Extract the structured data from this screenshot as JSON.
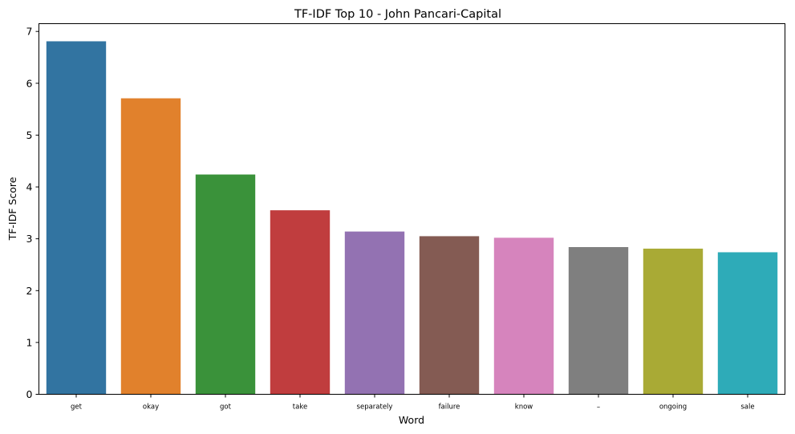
{
  "chart_data": {
    "type": "bar",
    "title": "TF-IDF Top 10 - John Pancari-Capital",
    "xlabel": "Word",
    "ylabel": "TF-IDF Score",
    "categories": [
      "get",
      "okay",
      "got",
      "take",
      "separately",
      "failure",
      "know",
      "–",
      "ongoing",
      "sale"
    ],
    "values": [
      6.81,
      5.71,
      4.24,
      3.55,
      3.14,
      3.05,
      3.02,
      2.84,
      2.81,
      2.74
    ],
    "colors": [
      "#3274a1",
      "#e1812c",
      "#3a923a",
      "#c03d3e",
      "#9372b2",
      "#845b53",
      "#d684bd",
      "#7f7f7f",
      "#a9aa35",
      "#2eabb8"
    ],
    "ylim": [
      0,
      7.15
    ],
    "yticks": [
      0,
      1,
      2,
      3,
      4,
      5,
      6,
      7
    ],
    "grid": false,
    "legend": "none"
  }
}
